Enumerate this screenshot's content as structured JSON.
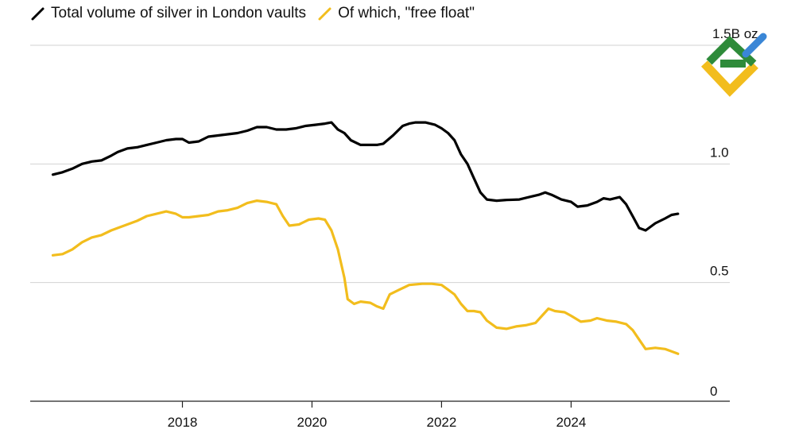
{
  "colors": {
    "series_total": "#000000",
    "series_free": "#f2bd1d",
    "grid": "#d2d2d2",
    "axis": "#222222",
    "text": "#111111",
    "logo_green": "#2e8b3a",
    "logo_yellow": "#f2bd1d",
    "logo_blue": "#3a86d6"
  },
  "logo": {
    "icon": "brand-logo-icon"
  },
  "chart_data": {
    "type": "line",
    "title": "",
    "xlabel": "",
    "ylabel": "",
    "xlim": [
      2015.65,
      2026.45
    ],
    "ylim": [
      0,
      1.5
    ],
    "y_ticks": [
      {
        "value": 0,
        "label": "0"
      },
      {
        "value": 0.5,
        "label": "0.5"
      },
      {
        "value": 1.0,
        "label": "1.0"
      },
      {
        "value": 1.5,
        "label": "1.5B oz"
      }
    ],
    "x_ticks": [
      {
        "value": 2018,
        "label": "2018"
      },
      {
        "value": 2020,
        "label": "2020"
      },
      {
        "value": 2022,
        "label": "2022"
      },
      {
        "value": 2024,
        "label": "2024"
      }
    ],
    "grid": true,
    "legend_position": "top-left",
    "series": [
      {
        "name": "Total volume of silver in London vaults",
        "color_key": "series_total",
        "points": [
          [
            2016.0,
            0.955
          ],
          [
            2016.15,
            0.965
          ],
          [
            2016.3,
            0.98
          ],
          [
            2016.45,
            1.0
          ],
          [
            2016.6,
            1.01
          ],
          [
            2016.75,
            1.015
          ],
          [
            2016.9,
            1.035
          ],
          [
            2017.0,
            1.05
          ],
          [
            2017.15,
            1.065
          ],
          [
            2017.3,
            1.07
          ],
          [
            2017.45,
            1.08
          ],
          [
            2017.6,
            1.09
          ],
          [
            2017.75,
            1.1
          ],
          [
            2017.9,
            1.105
          ],
          [
            2018.0,
            1.105
          ],
          [
            2018.1,
            1.09
          ],
          [
            2018.25,
            1.095
          ],
          [
            2018.4,
            1.115
          ],
          [
            2018.55,
            1.12
          ],
          [
            2018.7,
            1.125
          ],
          [
            2018.85,
            1.13
          ],
          [
            2019.0,
            1.14
          ],
          [
            2019.15,
            1.155
          ],
          [
            2019.3,
            1.155
          ],
          [
            2019.45,
            1.145
          ],
          [
            2019.6,
            1.145
          ],
          [
            2019.75,
            1.15
          ],
          [
            2019.9,
            1.16
          ],
          [
            2020.05,
            1.165
          ],
          [
            2020.2,
            1.17
          ],
          [
            2020.3,
            1.175
          ],
          [
            2020.4,
            1.145
          ],
          [
            2020.5,
            1.13
          ],
          [
            2020.6,
            1.1
          ],
          [
            2020.75,
            1.08
          ],
          [
            2020.9,
            1.08
          ],
          [
            2021.0,
            1.08
          ],
          [
            2021.1,
            1.085
          ],
          [
            2021.25,
            1.12
          ],
          [
            2021.4,
            1.16
          ],
          [
            2021.5,
            1.17
          ],
          [
            2021.6,
            1.175
          ],
          [
            2021.75,
            1.175
          ],
          [
            2021.9,
            1.165
          ],
          [
            2022.0,
            1.15
          ],
          [
            2022.1,
            1.13
          ],
          [
            2022.2,
            1.1
          ],
          [
            2022.3,
            1.04
          ],
          [
            2022.4,
            1.0
          ],
          [
            2022.5,
            0.94
          ],
          [
            2022.6,
            0.88
          ],
          [
            2022.7,
            0.85
          ],
          [
            2022.85,
            0.845
          ],
          [
            2023.0,
            0.848
          ],
          [
            2023.2,
            0.85
          ],
          [
            2023.35,
            0.86
          ],
          [
            2023.5,
            0.87
          ],
          [
            2023.6,
            0.88
          ],
          [
            2023.7,
            0.87
          ],
          [
            2023.85,
            0.85
          ],
          [
            2024.0,
            0.84
          ],
          [
            2024.1,
            0.82
          ],
          [
            2024.25,
            0.825
          ],
          [
            2024.4,
            0.84
          ],
          [
            2024.5,
            0.855
          ],
          [
            2024.6,
            0.85
          ],
          [
            2024.75,
            0.86
          ],
          [
            2024.85,
            0.83
          ],
          [
            2024.95,
            0.78
          ],
          [
            2025.05,
            0.73
          ],
          [
            2025.15,
            0.72
          ],
          [
            2025.3,
            0.75
          ],
          [
            2025.45,
            0.77
          ],
          [
            2025.55,
            0.785
          ],
          [
            2025.65,
            0.79
          ]
        ]
      },
      {
        "name": "Of which, \"free float\"",
        "color_key": "series_free",
        "points": [
          [
            2016.0,
            0.615
          ],
          [
            2016.15,
            0.62
          ],
          [
            2016.3,
            0.64
          ],
          [
            2016.45,
            0.67
          ],
          [
            2016.6,
            0.69
          ],
          [
            2016.75,
            0.7
          ],
          [
            2016.9,
            0.72
          ],
          [
            2017.0,
            0.73
          ],
          [
            2017.15,
            0.745
          ],
          [
            2017.3,
            0.76
          ],
          [
            2017.45,
            0.78
          ],
          [
            2017.6,
            0.79
          ],
          [
            2017.75,
            0.8
          ],
          [
            2017.9,
            0.79
          ],
          [
            2018.0,
            0.775
          ],
          [
            2018.1,
            0.775
          ],
          [
            2018.25,
            0.78
          ],
          [
            2018.4,
            0.785
          ],
          [
            2018.55,
            0.8
          ],
          [
            2018.7,
            0.805
          ],
          [
            2018.85,
            0.815
          ],
          [
            2019.0,
            0.835
          ],
          [
            2019.15,
            0.845
          ],
          [
            2019.3,
            0.84
          ],
          [
            2019.45,
            0.83
          ],
          [
            2019.55,
            0.78
          ],
          [
            2019.65,
            0.74
          ],
          [
            2019.8,
            0.745
          ],
          [
            2019.95,
            0.765
          ],
          [
            2020.1,
            0.77
          ],
          [
            2020.2,
            0.765
          ],
          [
            2020.3,
            0.72
          ],
          [
            2020.4,
            0.64
          ],
          [
            2020.5,
            0.52
          ],
          [
            2020.55,
            0.43
          ],
          [
            2020.65,
            0.41
          ],
          [
            2020.75,
            0.42
          ],
          [
            2020.9,
            0.415
          ],
          [
            2021.0,
            0.4
          ],
          [
            2021.1,
            0.39
          ],
          [
            2021.2,
            0.45
          ],
          [
            2021.35,
            0.47
          ],
          [
            2021.5,
            0.49
          ],
          [
            2021.7,
            0.495
          ],
          [
            2021.85,
            0.495
          ],
          [
            2022.0,
            0.49
          ],
          [
            2022.1,
            0.47
          ],
          [
            2022.2,
            0.45
          ],
          [
            2022.3,
            0.41
          ],
          [
            2022.4,
            0.38
          ],
          [
            2022.5,
            0.38
          ],
          [
            2022.6,
            0.375
          ],
          [
            2022.7,
            0.34
          ],
          [
            2022.85,
            0.31
          ],
          [
            2023.0,
            0.305
          ],
          [
            2023.15,
            0.315
          ],
          [
            2023.3,
            0.32
          ],
          [
            2023.45,
            0.33
          ],
          [
            2023.55,
            0.36
          ],
          [
            2023.65,
            0.39
          ],
          [
            2023.75,
            0.38
          ],
          [
            2023.9,
            0.375
          ],
          [
            2024.0,
            0.36
          ],
          [
            2024.15,
            0.335
          ],
          [
            2024.3,
            0.34
          ],
          [
            2024.4,
            0.35
          ],
          [
            2024.55,
            0.34
          ],
          [
            2024.7,
            0.335
          ],
          [
            2024.85,
            0.325
          ],
          [
            2024.95,
            0.3
          ],
          [
            2025.05,
            0.26
          ],
          [
            2025.15,
            0.22
          ],
          [
            2025.3,
            0.225
          ],
          [
            2025.45,
            0.22
          ],
          [
            2025.55,
            0.21
          ],
          [
            2025.65,
            0.2
          ]
        ]
      }
    ]
  }
}
